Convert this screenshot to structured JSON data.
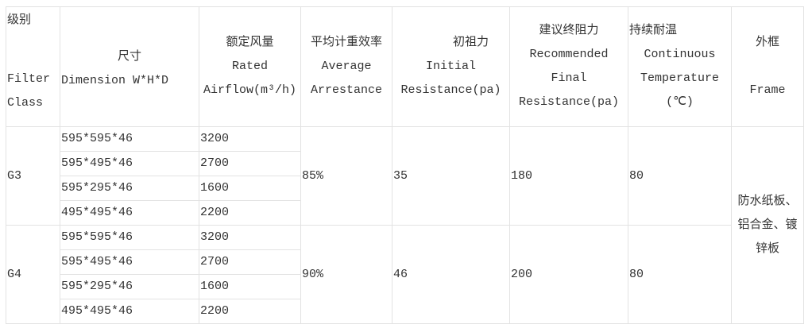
{
  "header": {
    "class_zh": "级别",
    "class_en1": "Filter",
    "class_en2": "Class",
    "dim_zh": "尺寸",
    "dim_en": "Dimension W*H*D",
    "airflow_zh": "额定风量",
    "airflow_en1": "Rated",
    "airflow_en2": "Airflow(m³/h)",
    "arrest_zh": "平均计重效率",
    "arrest_en1": "Average",
    "arrest_en2": "Arrestance",
    "init_zh": "初祖力",
    "init_en1": "Initial",
    "init_en2": "Resistance(pa)",
    "final_zh": "建议终阻力",
    "final_en1": "Recommended",
    "final_en2": "Final",
    "final_en3": "Resistance(pa)",
    "temp_zh": "持续耐温",
    "temp_en1": "Continuous",
    "temp_en2": "Temperature",
    "temp_en3": "(℃)",
    "frame_zh": "外框",
    "frame_en": "Frame"
  },
  "groups": [
    {
      "class": "G3",
      "arrestance": "85%",
      "initial": "35",
      "final": "180",
      "temp": "80",
      "rows": [
        {
          "dim": "595*595*46",
          "airflow": "3200"
        },
        {
          "dim": "595*495*46",
          "airflow": "2700"
        },
        {
          "dim": "595*295*46",
          "airflow": "1600"
        },
        {
          "dim": "495*495*46",
          "airflow": "2200"
        }
      ]
    },
    {
      "class": "G4",
      "arrestance": "90%",
      "initial": "46",
      "final": "200",
      "temp": "80",
      "rows": [
        {
          "dim": "595*595*46",
          "airflow": "3200"
        },
        {
          "dim": "595*495*46",
          "airflow": "2700"
        },
        {
          "dim": "595*295*46",
          "airflow": "1600"
        },
        {
          "dim": "495*495*46",
          "airflow": "2200"
        }
      ]
    }
  ],
  "frame": {
    "line1": "防水纸板、",
    "line2": "铝合金、镀",
    "line3": "锌板"
  }
}
